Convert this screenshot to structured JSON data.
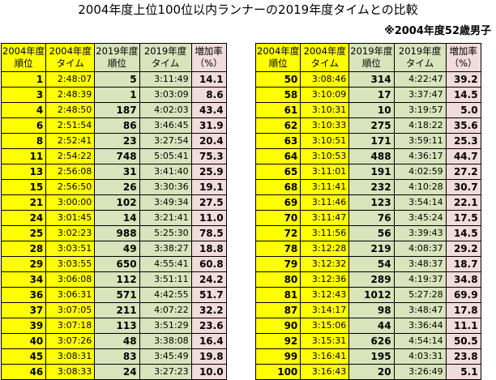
{
  "title": "2004年度上位100位以内ランナーの2019年度タイムとの比較",
  "subtitle": "※2004年度52歳男子",
  "headers": {
    "rank2004": [
      "2004年度",
      "順位"
    ],
    "time2004": [
      "2004年度",
      "タイム"
    ],
    "rank2019": [
      "2019年度",
      "順位"
    ],
    "time2019": [
      "2019年度",
      "タイム"
    ],
    "rate": [
      "増加率",
      "（%）"
    ]
  },
  "left_rows": [
    [
      "1",
      "2:48:07",
      "5",
      "3:11:49",
      "14.1"
    ],
    [
      "3",
      "2:48:39",
      "1",
      "3:03:09",
      "8.6"
    ],
    [
      "4",
      "2:48:50",
      "187",
      "4:02:03",
      "43.4"
    ],
    [
      "6",
      "2:51:54",
      "86",
      "3:46:45",
      "31.9"
    ],
    [
      "8",
      "2:52:41",
      "23",
      "3:27:54",
      "20.4"
    ],
    [
      "11",
      "2:54:22",
      "748",
      "5:05:41",
      "75.3"
    ],
    [
      "13",
      "2:56:08",
      "31",
      "3:41:40",
      "25.9"
    ],
    [
      "15",
      "2:56:50",
      "26",
      "3:30:36",
      "19.1"
    ],
    [
      "21",
      "3:00:00",
      "102",
      "3:49:34",
      "27.5"
    ],
    [
      "24",
      "3:01:45",
      "14",
      "3:21:41",
      "11.0"
    ],
    [
      "25",
      "3:02:23",
      "988",
      "5:25:30",
      "78.5"
    ],
    [
      "28",
      "3:03:51",
      "49",
      "3:38:27",
      "18.8"
    ],
    [
      "29",
      "3:03:55",
      "650",
      "4:55:41",
      "60.8"
    ],
    [
      "34",
      "3:06:08",
      "112",
      "3:51:11",
      "24.2"
    ],
    [
      "36",
      "3:06:31",
      "571",
      "4:42:55",
      "51.7"
    ],
    [
      "37",
      "3:07:05",
      "211",
      "4:07:22",
      "32.2"
    ],
    [
      "39",
      "3:07:18",
      "113",
      "3:51:29",
      "23.6"
    ],
    [
      "40",
      "3:07:26",
      "48",
      "3:38:08",
      "16.4"
    ],
    [
      "45",
      "3:08:31",
      "83",
      "3:45:49",
      "19.8"
    ],
    [
      "46",
      "3:08:33",
      "24",
      "3:27:23",
      "10.0"
    ]
  ],
  "right_rows": [
    [
      "50",
      "3:08:46",
      "314",
      "4:22:47",
      "39.2"
    ],
    [
      "58",
      "3:10:09",
      "17",
      "3:37:47",
      "14.5"
    ],
    [
      "61",
      "3:10:31",
      "10",
      "3:19:57",
      "5.0"
    ],
    [
      "62",
      "3:10:33",
      "275",
      "4:18:22",
      "35.6"
    ],
    [
      "63",
      "3:10:51",
      "171",
      "3:59:11",
      "25.3"
    ],
    [
      "64",
      "3:10:53",
      "488",
      "4:36:17",
      "44.7"
    ],
    [
      "65",
      "3:11:01",
      "191",
      "4:02:59",
      "27.2"
    ],
    [
      "68",
      "3:11:41",
      "232",
      "4:10:28",
      "30.7"
    ],
    [
      "69",
      "3:11:46",
      "123",
      "3:54:14",
      "22.1"
    ],
    [
      "70",
      "3:11:47",
      "76",
      "3:45:24",
      "17.5"
    ],
    [
      "72",
      "3:11:56",
      "56",
      "3:39:43",
      "14.5"
    ],
    [
      "78",
      "3:12:28",
      "219",
      "4:08:37",
      "29.2"
    ],
    [
      "79",
      "3:12:32",
      "54",
      "3:48:37",
      "18.7"
    ],
    [
      "80",
      "3:12:36",
      "289",
      "4:19:37",
      "34.8"
    ],
    [
      "81",
      "3:12:43",
      "1012",
      "5:27:28",
      "69.9"
    ],
    [
      "87",
      "3:14:17",
      "98",
      "3:48:47",
      "17.8"
    ],
    [
      "90",
      "3:15:06",
      "44",
      "3:36:44",
      "11.1"
    ],
    [
      "92",
      "3:15:31",
      "626",
      "4:54:14",
      "50.5"
    ],
    [
      "99",
      "3:16:41",
      "195",
      "4:03:31",
      "23.8"
    ],
    [
      "100",
      "3:16:43",
      "20",
      "3:26:49",
      "5.1"
    ]
  ]
}
